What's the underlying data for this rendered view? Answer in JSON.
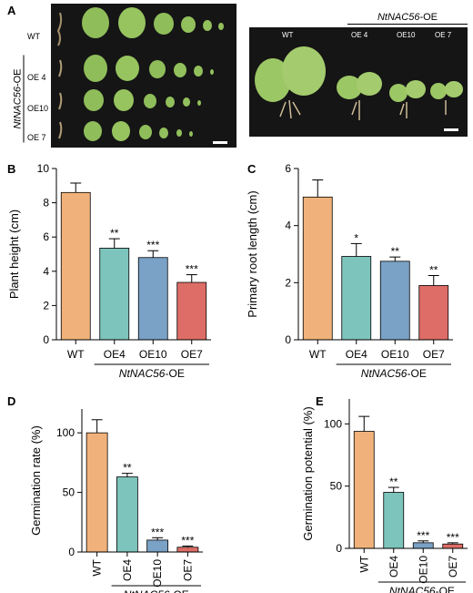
{
  "panel_a": {
    "letter": "A",
    "left_rows": [
      "WT",
      "OE 4",
      "OE10",
      "OE 7"
    ],
    "left_group_label_italic": "NtNAC56",
    "left_group_label_suffix": "-OE",
    "right_header_italic": "NtNAC56",
    "right_header_suffix": "-OE",
    "right_labels": [
      "WT",
      "OE 4",
      "OE10",
      "OE 7"
    ]
  },
  "group_label": {
    "italic": "NtNAC56",
    "suffix": "-OE"
  },
  "chart_data": [
    {
      "panel": "B",
      "type": "bar",
      "ylabel": "Plant height (cm)",
      "ylim": [
        0,
        10
      ],
      "yticks": [
        0,
        2,
        4,
        6,
        8,
        10
      ],
      "categories": [
        "WT",
        "OE4",
        "OE10",
        "OE7"
      ],
      "values": [
        8.6,
        5.35,
        4.8,
        3.35
      ],
      "errors": [
        0.55,
        0.55,
        0.4,
        0.45
      ],
      "significance": [
        "",
        "**",
        "***",
        "***"
      ],
      "colors": [
        "#f0b27a",
        "#7dc4bc",
        "#7aa1c6",
        "#dd6d66"
      ]
    },
    {
      "panel": "C",
      "type": "bar",
      "ylabel": "Primary root length (cm)",
      "ylim": [
        0,
        6
      ],
      "yticks": [
        0,
        2,
        4,
        6
      ],
      "categories": [
        "WT",
        "OE4",
        "OE10",
        "OE7"
      ],
      "values": [
        5.0,
        2.92,
        2.75,
        1.9
      ],
      "errors": [
        0.6,
        0.45,
        0.15,
        0.35
      ],
      "significance": [
        "",
        "*",
        "**",
        "**"
      ],
      "colors": [
        "#f0b27a",
        "#7dc4bc",
        "#7aa1c6",
        "#dd6d66"
      ]
    },
    {
      "panel": "D",
      "type": "bar",
      "ylabel": "Germination rate (%)",
      "ylim": [
        0,
        120
      ],
      "yticks": [
        0,
        50,
        100
      ],
      "categories": [
        "WT",
        "OE4",
        "OE10",
        "OE7"
      ],
      "values": [
        100,
        63,
        10,
        4
      ],
      "errors": [
        11,
        3,
        2,
        1
      ],
      "significance": [
        "",
        "**",
        "***",
        "***"
      ],
      "colors": [
        "#f0b27a",
        "#7dc4bc",
        "#7aa1c6",
        "#dd6d66"
      ]
    },
    {
      "panel": "E",
      "type": "bar",
      "ylabel": "Germination potential (%)",
      "ylim": [
        0,
        120
      ],
      "yticks": [
        0,
        50,
        100
      ],
      "categories": [
        "WT",
        "OE4",
        "OE10",
        "OE7"
      ],
      "values": [
        94,
        45,
        4.5,
        3.5
      ],
      "errors": [
        12,
        4,
        1.5,
        1
      ],
      "significance": [
        "",
        "**",
        "***",
        "***"
      ],
      "colors": [
        "#f0b27a",
        "#7dc4bc",
        "#7aa1c6",
        "#dd6d66"
      ]
    }
  ]
}
